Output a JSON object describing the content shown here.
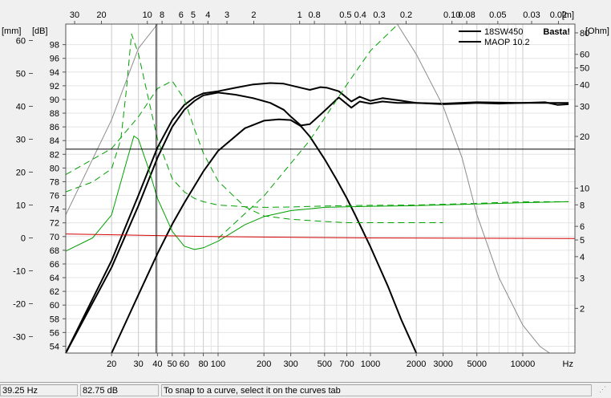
{
  "chart_data": {
    "type": "line",
    "title": "",
    "xlabel": "Hz",
    "xscale": "log",
    "xlim": [
      10,
      22000
    ],
    "x_ticks": [
      20,
      30,
      40,
      50,
      60,
      80,
      100,
      200,
      300,
      500,
      700,
      1000,
      2000,
      3000,
      5000,
      10000
    ],
    "x_tick_labels": [
      "20",
      "30",
      "40",
      "50",
      "60",
      "80",
      "100",
      "200",
      "300",
      "500",
      "700",
      "1000",
      "2000",
      "3000",
      "5000",
      "10000"
    ],
    "wavelength_axis": {
      "unit": "[m]",
      "ticks": [
        30,
        20,
        10,
        8,
        6,
        5,
        4,
        3,
        2,
        1,
        0.8,
        0.5,
        0.4,
        0.3,
        0.2,
        0.1,
        0.08,
        0.05,
        0.03,
        0.02
      ],
      "labels": [
        "30",
        "20",
        "10",
        "8",
        "6",
        "5",
        "4",
        "3",
        "2",
        "1",
        "0.8",
        "0.5",
        "0.4",
        "0.3",
        "0.2",
        "0.10",
        "0.08",
        "0.05",
        "0.03",
        "0.02"
      ]
    },
    "axes": {
      "mm": {
        "unit": "[mm]",
        "ylim": [
          -35,
          65
        ],
        "ticks": [
          60,
          50,
          40,
          30,
          20,
          10,
          0,
          -10,
          -20,
          -30
        ],
        "labels": [
          "60",
          "50",
          "40",
          "30",
          "20",
          "10",
          "0",
          "-10",
          "-20",
          "-30"
        ]
      },
      "db": {
        "unit": "[dB]",
        "ylim": [
          53,
          101
        ],
        "ticks": [
          98,
          96,
          94,
          92,
          90,
          88,
          86,
          84,
          82,
          80,
          78,
          76,
          74,
          72,
          70,
          68,
          66,
          64,
          62,
          60,
          58,
          56,
          54
        ],
        "labels": [
          "98",
          "96",
          "94",
          "92",
          "90",
          "88",
          "86",
          "84",
          "82",
          "80",
          "78",
          "76",
          "74",
          "72",
          "70",
          "68",
          "66",
          "64",
          "62",
          "60",
          "58",
          "56",
          "54"
        ]
      },
      "ohm": {
        "unit": "[Ohm]",
        "ylim": [
          1.1,
          90
        ],
        "scale": "log",
        "ticks": [
          80,
          60,
          50,
          40,
          30,
          20,
          10,
          8,
          6,
          5,
          4,
          3,
          2
        ],
        "labels": [
          "80",
          "60",
          "50",
          "40",
          "30",
          "20",
          "10",
          "8",
          "6",
          "5",
          "4",
          "3",
          "2"
        ]
      }
    },
    "grid": true,
    "legend": {
      "position": "top-right",
      "entries": [
        "18SW450",
        "MAOP 10.2"
      ]
    },
    "watermark": "Basta!",
    "cursor": {
      "freq": 39.25,
      "db": 82.75
    },
    "series": [
      {
        "name": "18SW450",
        "axis": "db",
        "color": "#000000",
        "x": [
          10,
          20,
          30,
          40,
          50,
          60,
          70,
          80,
          100,
          130,
          170,
          220,
          270,
          320,
          400,
          470,
          520,
          620,
          750,
          850,
          1000,
          1200,
          1500,
          2000,
          3000,
          4000,
          5000,
          7000,
          10000,
          14000,
          17000,
          20000
        ],
        "y": [
          53,
          66.5,
          76,
          83,
          87,
          89.2,
          90.3,
          90.9,
          91.2,
          91.7,
          92.2,
          92.4,
          92.3,
          91.9,
          91.4,
          91.8,
          91.7,
          91.2,
          89.7,
          90.4,
          89.8,
          90.2,
          89.9,
          89.5,
          89.3,
          89.4,
          89.5,
          89.4,
          89.5,
          89.6,
          89.2,
          89.3
        ]
      },
      {
        "name": "",
        "axis": "db",
        "color": "#000000",
        "x": [
          10,
          20,
          30,
          40,
          50,
          60,
          70,
          80,
          100,
          130,
          170,
          220,
          270,
          300,
          350,
          400,
          470,
          520,
          620,
          750,
          850,
          1000,
          1200,
          1500,
          2000,
          3000,
          5000,
          10000,
          20000
        ],
        "y": [
          53,
          65.5,
          74.5,
          81.5,
          86,
          88.5,
          89.8,
          90.6,
          91,
          90.7,
          90.2,
          89.5,
          88.5,
          87.5,
          86.2,
          86.4,
          87.8,
          88.7,
          90.3,
          88.8,
          89.7,
          89.4,
          89.7,
          89.5,
          89.5,
          89.4,
          89.6,
          89.5,
          89.5
        ]
      },
      {
        "name": "MAOP 10.2",
        "axis": "db",
        "color": "#000000",
        "x": [
          20,
          30,
          40,
          50,
          60,
          80,
          100,
          150,
          200,
          250,
          300,
          350,
          400,
          500,
          600,
          700,
          800,
          1000,
          1300,
          1600,
          2000
        ],
        "y": [
          53,
          61.5,
          67.5,
          71.8,
          74.9,
          79.5,
          82.5,
          85.8,
          86.9,
          87.1,
          87.0,
          86.1,
          84.6,
          81.3,
          78.3,
          75.6,
          73.0,
          68.5,
          62.8,
          57.8,
          53
        ]
      },
      {
        "name": "",
        "axis": "mm",
        "color": "#00a000",
        "dash": true,
        "x": [
          10,
          15,
          20,
          23,
          25,
          27,
          30,
          35,
          40,
          50,
          60,
          70,
          80,
          100,
          150,
          200,
          300,
          500,
          1000,
          2000,
          5000,
          10000,
          20000
        ],
        "y": [
          14,
          17,
          21,
          30,
          45,
          62,
          56,
          42,
          30,
          18,
          14,
          12,
          11,
          10,
          9.5,
          9.3,
          9.4,
          9.7,
          9.9,
          10,
          10.5,
          11,
          11
        ]
      },
      {
        "name": "",
        "axis": "mm",
        "color": "#00a000",
        "dash": false,
        "x": [
          10,
          15,
          20,
          25,
          28,
          30,
          35,
          40,
          50,
          60,
          70,
          80,
          100,
          150,
          200,
          300,
          500,
          1000,
          2000,
          5000,
          10000,
          20000
        ],
        "y": [
          -4,
          0,
          7,
          23,
          31,
          30,
          21,
          12,
          2,
          -2.5,
          -3.5,
          -3,
          -1,
          4,
          6.5,
          8.3,
          9.3,
          9.6,
          9.8,
          10.3,
          10.7,
          11
        ]
      },
      {
        "name": "",
        "axis": "ohm",
        "color": "#00a000",
        "dash": true,
        "x": [
          10,
          20,
          30,
          40,
          50,
          60,
          70,
          80,
          100,
          150,
          200,
          300,
          500,
          700,
          1000,
          1500,
          2000,
          3000
        ],
        "y": [
          12,
          17,
          26,
          38,
          42,
          33,
          22,
          16,
          11,
          7.8,
          6.9,
          6.6,
          6.4,
          6.3,
          6.3,
          6.3,
          6.3,
          6.3
        ]
      },
      {
        "name": "",
        "axis": "ohm",
        "color": "#00a000",
        "dash": true,
        "x": [
          100,
          200,
          400,
          700,
          1000,
          1500
        ],
        "y": [
          5.1,
          9,
          19,
          40,
          63,
          89
        ]
      },
      {
        "name": "",
        "axis": "mm",
        "color": "#d40000",
        "dash": false,
        "x": [
          10,
          100,
          1000,
          22000
        ],
        "y": [
          1.2,
          0.4,
          0,
          -0.2
        ]
      },
      {
        "name": "",
        "axis": "ohm",
        "color": "#8c8c8c",
        "dash": false,
        "x": [
          10,
          20,
          30,
          40,
          1500,
          2000,
          3000,
          4000,
          5000,
          7000,
          10000,
          13000,
          15000
        ],
        "y": [
          7,
          25,
          65,
          90,
          90,
          60,
          30,
          15,
          7,
          3,
          1.6,
          1.2,
          1.1
        ]
      }
    ]
  },
  "status_bar": {
    "freq_text": "39.25 Hz",
    "db_text": "82.75 dB",
    "hint": "To snap to a curve, select it on the curves tab"
  }
}
